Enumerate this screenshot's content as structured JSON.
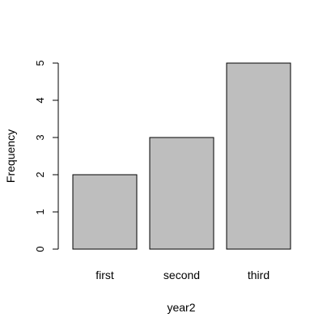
{
  "chart_data": {
    "type": "bar",
    "categories": [
      "first",
      "second",
      "third"
    ],
    "values": [
      2,
      3,
      5
    ],
    "title": "",
    "xlabel": "year2",
    "ylabel": "Frequency",
    "ylim": [
      0,
      5
    ],
    "yticks": [
      "0",
      "1",
      "2",
      "3",
      "4",
      "5"
    ],
    "grid": false,
    "bar_fill": "#bebebe",
    "bar_stroke": "#000000"
  }
}
